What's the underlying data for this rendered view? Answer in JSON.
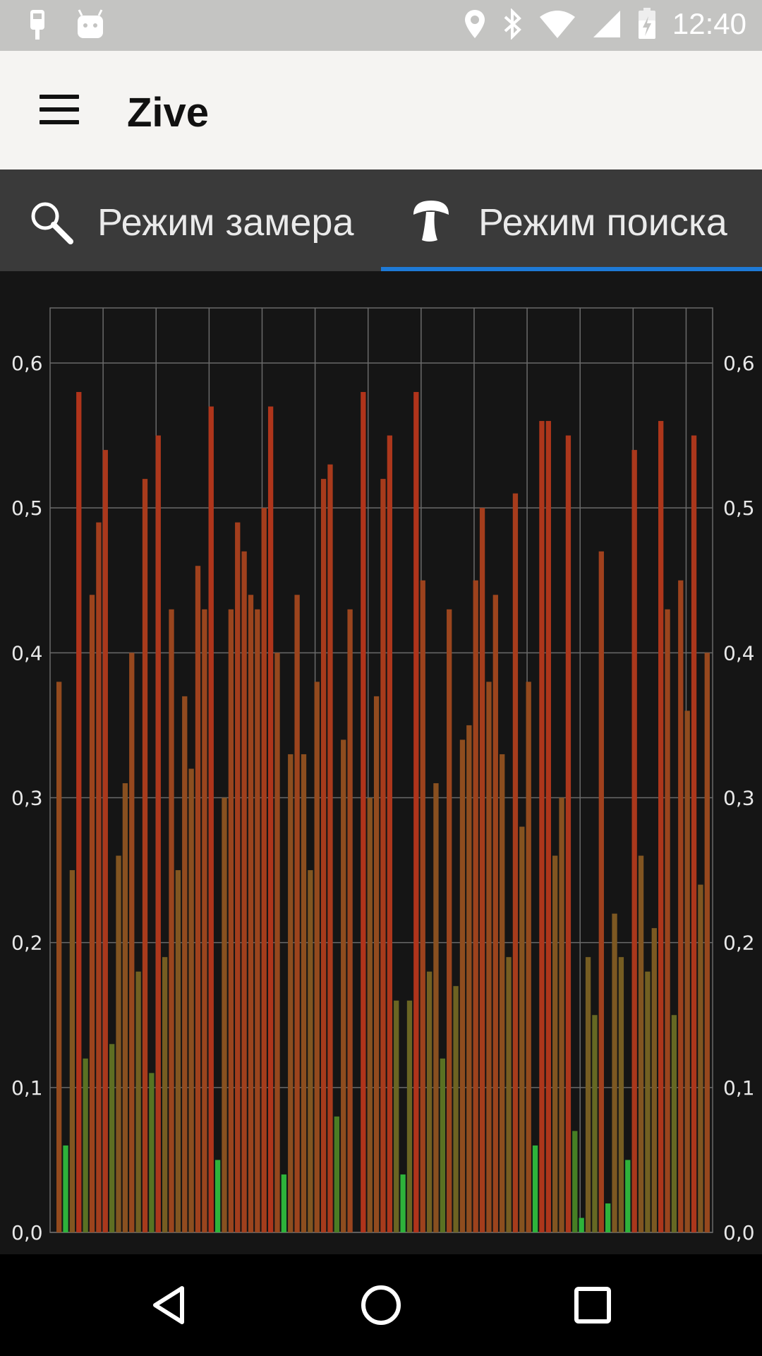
{
  "status_bar": {
    "time": "12:40",
    "icons": [
      "phone-location-icon",
      "android-icon",
      "location-icon",
      "bluetooth-icon",
      "wifi-icon",
      "signal-icon",
      "battery-charging-icon"
    ]
  },
  "app_bar": {
    "title": "Zive",
    "menu_icon": "hamburger-menu-icon"
  },
  "tabs": [
    {
      "label": "Режим замера",
      "icon": "magnifier-icon",
      "selected": false
    },
    {
      "label": "Режим поиска",
      "icon": "mushroom-icon",
      "selected": true
    }
  ],
  "colors": {
    "accent": "#1e7ad6",
    "low": "#2eb33b",
    "mid": "#7a5a22",
    "high": "#b0341b"
  },
  "chart_data": {
    "type": "bar",
    "ylim": [
      0,
      0.64
    ],
    "yticks": [
      "0,0",
      "0,1",
      "0,2",
      "0,3",
      "0,4",
      "0,5",
      "0,6"
    ],
    "grid": true,
    "values": [
      0.38,
      0.06,
      0.25,
      0.58,
      0.12,
      0.44,
      0.49,
      0.54,
      0.13,
      0.26,
      0.31,
      0.4,
      0.18,
      0.52,
      0.11,
      0.55,
      0.19,
      0.43,
      0.25,
      0.37,
      0.32,
      0.46,
      0.43,
      0.57,
      0.05,
      0.3,
      0.43,
      0.49,
      0.47,
      0.44,
      0.43,
      0.5,
      0.57,
      0.4,
      0.04,
      0.33,
      0.44,
      0.33,
      0.25,
      0.38,
      0.52,
      0.53,
      0.08,
      0.34,
      0.43,
      0.0,
      0.58,
      0.3,
      0.37,
      0.52,
      0.55,
      0.16,
      0.04,
      0.16,
      0.58,
      0.45,
      0.18,
      0.31,
      0.12,
      0.43,
      0.17,
      0.34,
      0.35,
      0.45,
      0.5,
      0.38,
      0.44,
      0.33,
      0.19,
      0.51,
      0.28,
      0.38,
      0.06,
      0.56,
      0.56,
      0.26,
      0.3,
      0.55,
      0.07,
      0.01,
      0.19,
      0.15,
      0.47,
      0.02,
      0.22,
      0.19,
      0.05,
      0.54,
      0.26,
      0.18,
      0.21,
      0.56,
      0.43,
      0.15,
      0.45,
      0.36,
      0.55,
      0.24,
      0.4
    ]
  },
  "nav_bar": {
    "back": "back-icon",
    "home": "home-icon",
    "recents": "recents-icon"
  }
}
